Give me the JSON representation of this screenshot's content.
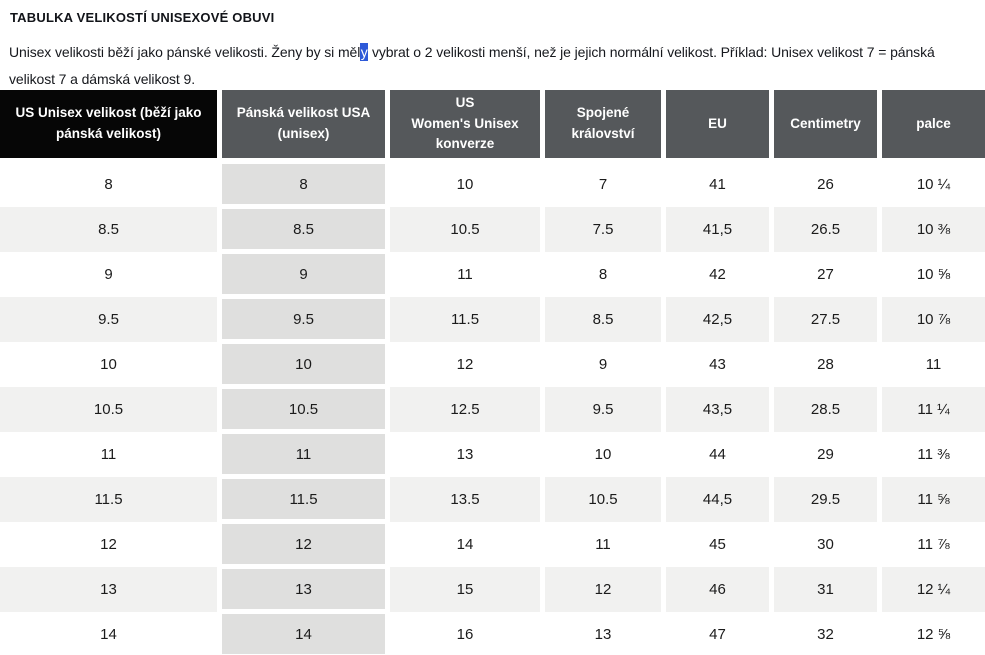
{
  "page": {
    "title": "TABULKA VELIKOSTÍ UNISEXOVÉ OBUVI",
    "intro": {
      "before_highlight": "Unisex velikosti běží jako pánské velikosti. Ženy by si měl",
      "highlight": "y",
      "after_highlight": " vybrat o 2 velikosti menší, než je jejich normální velikost. Příklad: Unisex velikost 7 = pánská velikost 7 a dámská velikost 9."
    }
  },
  "table": {
    "columns": [
      {
        "label": "US Unisex velikost (běží jako\npánská velikost)",
        "style": "black"
      },
      {
        "label": "Pánská velikost USA\n(unisex)",
        "style": "gray"
      },
      {
        "label": "US\nWomen's Unisex\nkonverze",
        "style": "gray"
      },
      {
        "label": "Spojené\nkrálovství",
        "style": "gray"
      },
      {
        "label": "EU",
        "style": "gray"
      },
      {
        "label": "Centimetry",
        "style": "gray"
      },
      {
        "label": "palce",
        "style": "gray"
      }
    ],
    "rows": [
      [
        "8",
        "8",
        "10",
        "7",
        "41",
        "26",
        "10 ¼"
      ],
      [
        "8.5",
        "8.5",
        "10.5",
        "7.5",
        "41,5",
        "26.5",
        "10 ⅜"
      ],
      [
        "9",
        "9",
        "11",
        "8",
        "42",
        "27",
        "10 ⅝"
      ],
      [
        "9.5",
        "9.5",
        "11.5",
        "8.5",
        "42,5",
        "27.5",
        "10 ⅞"
      ],
      [
        "10",
        "10",
        "12",
        "9",
        "43",
        "28",
        "11"
      ],
      [
        "10.5",
        "10.5",
        "12.5",
        "9.5",
        "43,5",
        "28.5",
        "11 ¼"
      ],
      [
        "11",
        "11",
        "13",
        "10",
        "44",
        "29",
        "11 ⅜"
      ],
      [
        "11.5",
        "11.5",
        "13.5",
        "10.5",
        "44,5",
        "29.5",
        "11 ⅝"
      ],
      [
        "12",
        "12",
        "14",
        "11",
        "45",
        "30",
        "11 ⅞"
      ],
      [
        "13",
        "13",
        "15",
        "12",
        "46",
        "31",
        "12 ¼"
      ],
      [
        "14",
        "14",
        "16",
        "13",
        "47",
        "32",
        "12 ⅝"
      ]
    ]
  },
  "colors": {
    "header_black": "#060606",
    "header_gray": "#55585b",
    "row_stripe": "#f1f1f0",
    "mens_column_cell": "#dfdfde",
    "selection_highlight": "#2d59d8",
    "text": "#16181d"
  }
}
